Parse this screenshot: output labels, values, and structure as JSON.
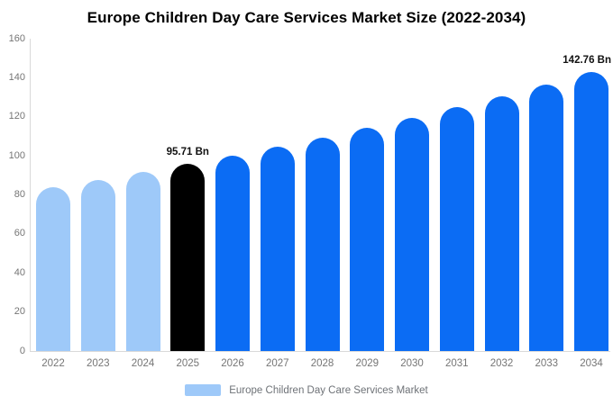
{
  "title": "Europe Children Day Care Services Market Size (2022-2034)",
  "legend": {
    "label": "Europe Children Day Care Services Market",
    "swatch_color": "#9ec9f9"
  },
  "chart_data": {
    "type": "bar",
    "title": "Europe Children Day Care Services Market Size (2022-2034)",
    "categories": [
      "2022",
      "2023",
      "2024",
      "2025",
      "2026",
      "2027",
      "2028",
      "2029",
      "2030",
      "2031",
      "2032",
      "2033",
      "2034"
    ],
    "values": [
      83.8,
      87.6,
      91.6,
      95.71,
      100.1,
      104.6,
      109.4,
      114.3,
      119.5,
      124.9,
      130.6,
      136.5,
      142.76
    ],
    "bar_colors": [
      "#9ec9f9",
      "#9ec9f9",
      "#9ec9f9",
      "#000000",
      "#0b6cf4",
      "#0b6cf4",
      "#0b6cf4",
      "#0b6cf4",
      "#0b6cf4",
      "#0b6cf4",
      "#0b6cf4",
      "#0b6cf4",
      "#0b6cf4"
    ],
    "xlabel": "",
    "ylabel": "",
    "ylim": [
      0,
      160
    ],
    "yticks": [
      0,
      20,
      40,
      60,
      80,
      100,
      120,
      140,
      160
    ],
    "grid": false,
    "legend_position": "bottom",
    "annotations": [
      {
        "category": "2025",
        "text": "95.71 Bn"
      },
      {
        "category": "2034",
        "text": "142.76 Bn"
      }
    ],
    "colors": {
      "past_bars": "#9ec9f9",
      "highlight_bar": "#000000",
      "forecast_bars": "#0b6cf4",
      "axis_line": "#d9d9d9",
      "tick_text": "#757575",
      "annotation_text": "#111111"
    }
  }
}
